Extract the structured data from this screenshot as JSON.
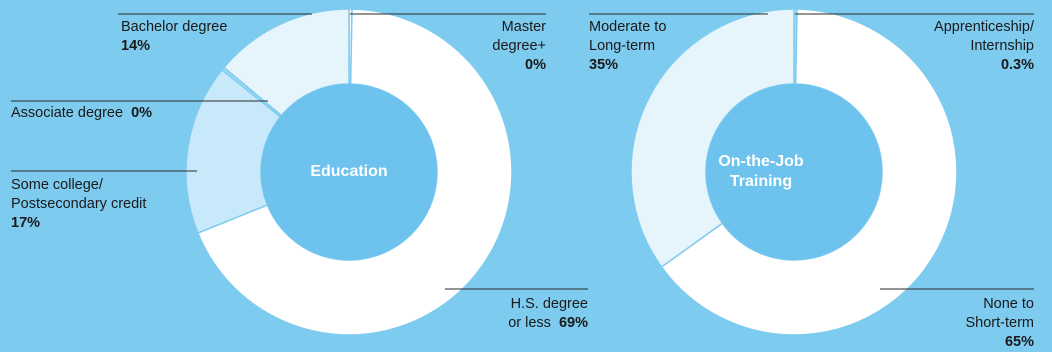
{
  "chart_data": [
    {
      "type": "pie",
      "title": "Education",
      "slices": [
        {
          "label_lines": [
            "Master",
            "degree+"
          ],
          "value": 0.3,
          "value_label": "0%"
        },
        {
          "label_lines": [
            "H.S. degree",
            "or less"
          ],
          "value": 69,
          "value_label": "69%"
        },
        {
          "label_lines": [
            "Some college/",
            "Postsecondary credit"
          ],
          "value": 17,
          "value_label": "17%"
        },
        {
          "label_lines": [
            "Associate degree"
          ],
          "value": 0.3,
          "value_label": "0%"
        },
        {
          "label_lines": [
            "Bachelor degree"
          ],
          "value": 14,
          "value_label": "14%"
        }
      ]
    },
    {
      "type": "pie",
      "title_lines": [
        "On-the-Job",
        "Training"
      ],
      "slices": [
        {
          "label_lines": [
            "Apprenticeship/",
            "Internship"
          ],
          "value": 0.3,
          "value_label": "0.3%"
        },
        {
          "label_lines": [
            "None to",
            "Short-term"
          ],
          "value": 65,
          "value_label": "65%"
        },
        {
          "label_lines": [
            "Moderate to",
            "Long-term"
          ],
          "value": 35,
          "value_label": "35%"
        }
      ]
    }
  ],
  "colors": {
    "background": "#7ecbf0",
    "center": "#6ec3ee",
    "divider": "#7ecbf0",
    "slice_fills": [
      "#ffffff",
      "#e6f4fc",
      "#c8e9fa",
      "#a9ddf6"
    ]
  }
}
